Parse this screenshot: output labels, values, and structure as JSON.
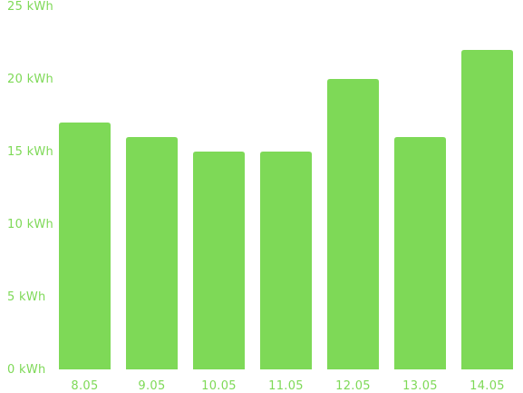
{
  "chart_data": {
    "type": "bar",
    "categories": [
      "8.05",
      "9.05",
      "10.05",
      "11.05",
      "12.05",
      "13.05",
      "14.05"
    ],
    "values": [
      17,
      16,
      15,
      15,
      20,
      16,
      22
    ],
    "unit": "kWh",
    "y_ticks": [
      "0 kWh",
      "5 kWh",
      "10 kWh",
      "15 kWh",
      "20 kWh",
      "25 kWh"
    ],
    "ylim": [
      0,
      25
    ],
    "grid": false,
    "colors": {
      "bar": "#7ed957",
      "label": "#7ed957"
    }
  }
}
